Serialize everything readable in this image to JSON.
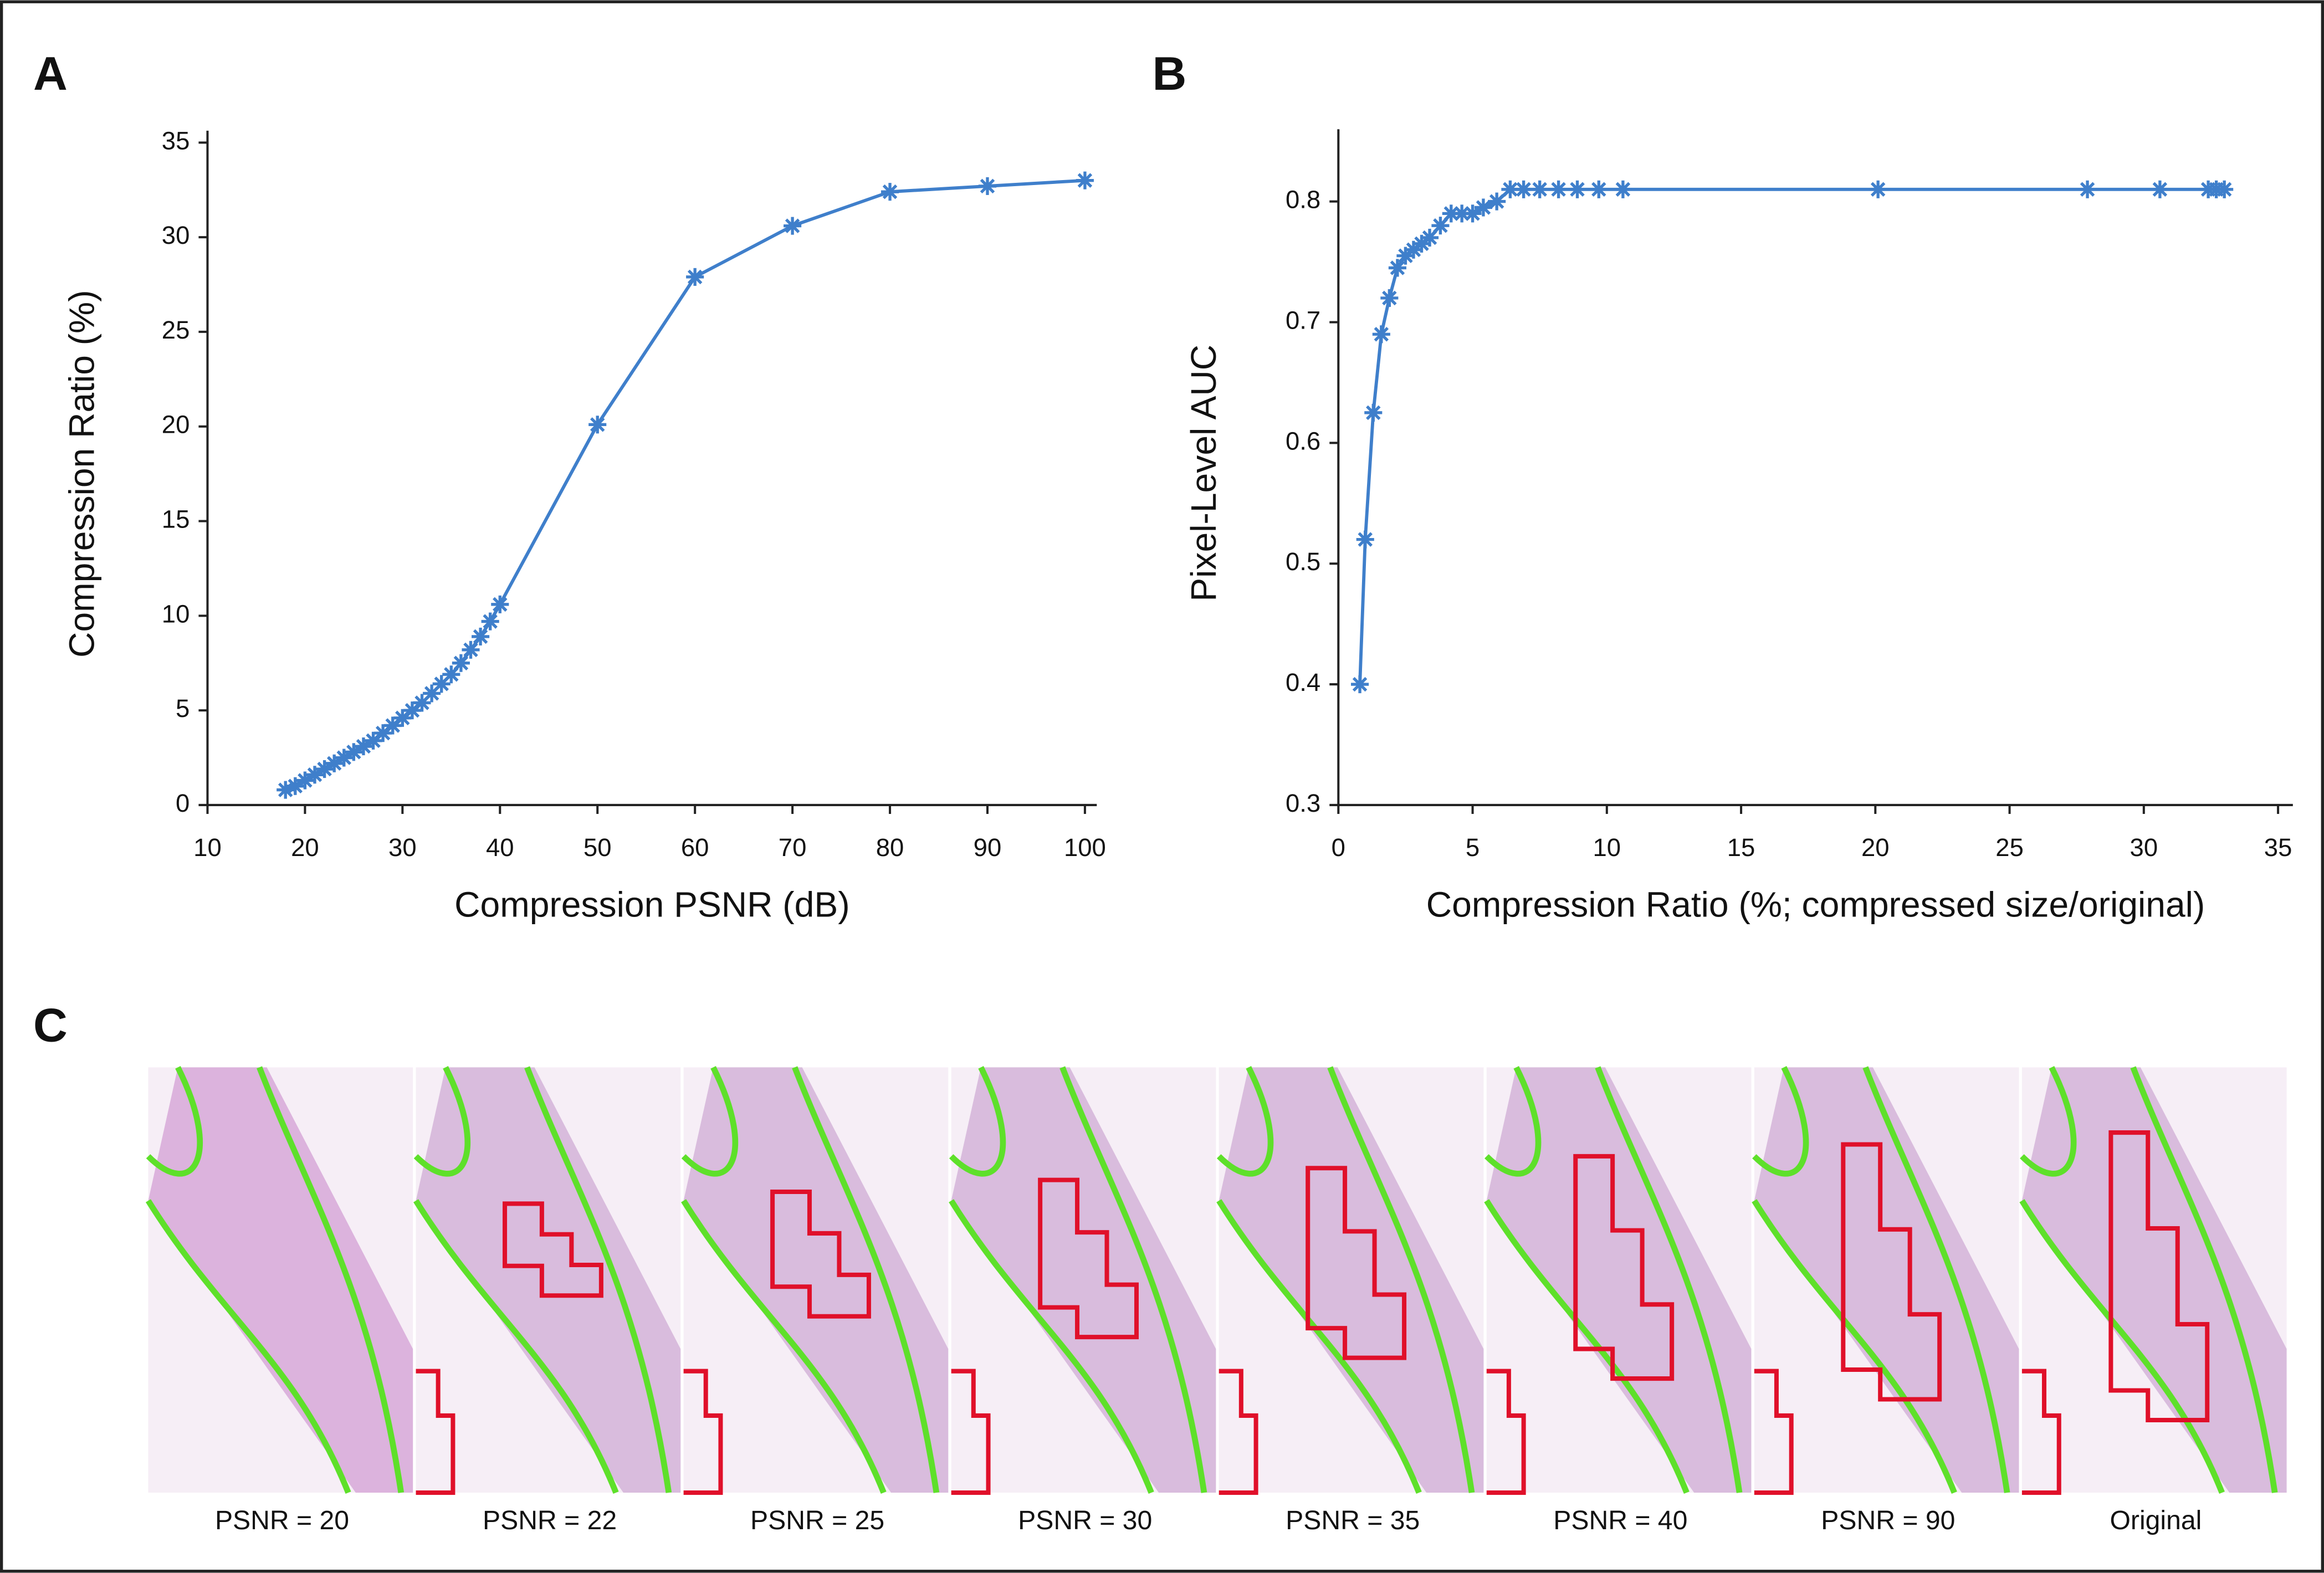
{
  "chart_data": [
    {
      "type": "line",
      "panel": "A",
      "x_label": "Compression PSNR (dB)",
      "y_label": "Compression Ratio (%)",
      "x": [
        18,
        19,
        20,
        21,
        22,
        23,
        24,
        25,
        26,
        27,
        28,
        29,
        30,
        31,
        32,
        33,
        34,
        35,
        36,
        37,
        38,
        39,
        40,
        50,
        60,
        70,
        80,
        90,
        100
      ],
      "series": [
        {
          "color": "#3f7fcb",
          "values": [
            0.8,
            1.0,
            1.3,
            1.6,
            1.9,
            2.2,
            2.5,
            2.8,
            3.1,
            3.4,
            3.8,
            4.2,
            4.6,
            5.0,
            5.4,
            5.9,
            6.4,
            6.9,
            7.5,
            8.2,
            8.9,
            9.7,
            10.6,
            20.1,
            27.9,
            30.6,
            32.4,
            32.7,
            33.0
          ]
        }
      ],
      "xlim": [
        10,
        100
      ],
      "xticks": [
        10,
        20,
        30,
        40,
        50,
        60,
        70,
        80,
        90,
        100
      ],
      "ylim": [
        0,
        35
      ],
      "yticks": [
        0,
        5,
        10,
        15,
        20,
        25,
        30,
        35
      ]
    },
    {
      "type": "line",
      "panel": "B",
      "x_label": "Compression Ratio (%; compressed size/original)",
      "y_label": "Pixel-Level AUC",
      "x": [
        0.8,
        1.0,
        1.3,
        1.6,
        1.9,
        2.2,
        2.5,
        2.8,
        3.1,
        3.4,
        3.8,
        4.2,
        4.6,
        5.0,
        5.4,
        5.9,
        6.4,
        6.9,
        7.5,
        8.2,
        8.9,
        9.7,
        10.6,
        20.1,
        27.9,
        30.6,
        32.4,
        32.7,
        33.0
      ],
      "series": [
        {
          "color": "#3f7fcb",
          "values": [
            0.4,
            0.52,
            0.625,
            0.69,
            0.72,
            0.745,
            0.755,
            0.76,
            0.765,
            0.77,
            0.78,
            0.79,
            0.79,
            0.79,
            0.795,
            0.8,
            0.81,
            0.81,
            0.81,
            0.81,
            0.81,
            0.81,
            0.81,
            0.81,
            0.81,
            0.81,
            0.81,
            0.81,
            0.81
          ]
        }
      ],
      "xlim": [
        0,
        35
      ],
      "xticks": [
        0,
        5,
        10,
        15,
        20,
        25,
        30,
        35
      ],
      "ylim": [
        0.3,
        0.85
      ],
      "yticks": [
        0.3,
        0.4,
        0.5,
        0.6,
        0.7,
        0.8
      ]
    }
  ],
  "panel_c": {
    "label": "C",
    "captions": [
      "PSNR = 20",
      "PSNR = 22",
      "PSNR = 25",
      "PSNR = 30",
      "PSNR = 35",
      "PSNR = 40",
      "PSNR = 90",
      "Original"
    ]
  }
}
